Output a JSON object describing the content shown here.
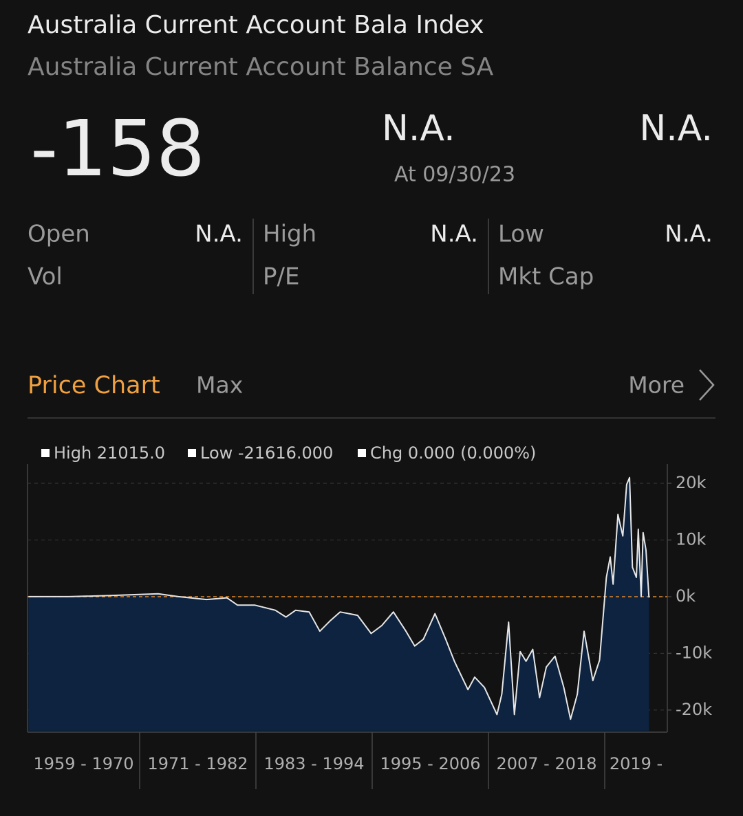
{
  "header": {
    "title": "Australia Current Account Bala Index",
    "subtitle": "Australia Current Account Balance SA"
  },
  "quote": {
    "price": "-158",
    "change": "N.A.",
    "date": "At 09/30/23",
    "change_pct": "N.A."
  },
  "stats": [
    {
      "label": "Open",
      "value": "N.A."
    },
    {
      "label": "High",
      "value": "N.A."
    },
    {
      "label": "Low",
      "value": "N.A."
    },
    {
      "label": "Vol"
    },
    {
      "label": "P/E"
    },
    {
      "label": "Mkt Cap"
    }
  ],
  "tabs": {
    "active": "Price Chart",
    "range": "Max",
    "more": "More"
  },
  "chart_data": {
    "type": "area",
    "legend": [
      "High 21015.0",
      "Low -21616.000",
      "Chg 0.000 (0.000%)"
    ],
    "periods": [
      "1959 - 1970",
      "1971 - 1982",
      "1983 - 1994",
      "1995 - 2006",
      "2007 - 2018",
      "2019 -"
    ],
    "x": [
      1959.5,
      1963.7,
      1968.0,
      1972.9,
      1975.0,
      1977.9,
      1980.0,
      1981.1,
      1982.9,
      1985.0,
      1986.1,
      1987.1,
      1988.5,
      1989.6,
      1990.7,
      1991.7,
      1993.5,
      1994.9,
      1996.0,
      1997.2,
      1998.5,
      1999.4,
      2000.3,
      2001.5,
      2002.6,
      2003.5,
      2004.9,
      2005.6,
      2006.6,
      2007.9,
      2008.4,
      2009.1,
      2009.7,
      2010.3,
      2010.9,
      2011.6,
      2012.3,
      2013.0,
      2013.9,
      2014.8,
      2015.5,
      2016.2,
      2016.9,
      2017.8,
      2018.5,
      2019.2,
      2019.6,
      2019.9,
      2020.4,
      2020.9,
      2021.3,
      2021.6,
      2021.9,
      2022.3,
      2022.5,
      2022.8,
      2023.0,
      2023.3,
      2023.6
    ],
    "values": [
      0,
      0,
      200,
      500,
      0,
      -500,
      -200,
      -1500,
      -1500,
      -2400,
      -3600,
      -2400,
      -2700,
      -6100,
      -4200,
      -2700,
      -3300,
      -6500,
      -5100,
      -2700,
      -6100,
      -8700,
      -7500,
      -3000,
      -7500,
      -11400,
      -16400,
      -14200,
      -16000,
      -20800,
      -17200,
      -4500,
      -20800,
      -9700,
      -11400,
      -9300,
      -17800,
      -12400,
      -10500,
      -16000,
      -21616,
      -17200,
      -6100,
      -14800,
      -11200,
      3400,
      7000,
      2200,
      14500,
      10700,
      19800,
      21015,
      5200,
      3400,
      11900,
      0,
      11300,
      8200,
      -158
    ],
    "color": "#e6e6e6",
    "fill_color": "#0d2340",
    "xlim": [
      1959.4,
      2025.5
    ],
    "ylim": [
      -23900,
      23400
    ],
    "yticks": [
      {
        "value": 20000,
        "label": "20k"
      },
      {
        "value": 10000,
        "label": "10k"
      },
      {
        "value": 0,
        "label": "0k"
      },
      {
        "value": -10000,
        "label": "-10k"
      },
      {
        "value": -20000,
        "label": "-20k"
      }
    ],
    "grid": true,
    "baseline": 0,
    "baseline_color": "#e08a2c"
  }
}
